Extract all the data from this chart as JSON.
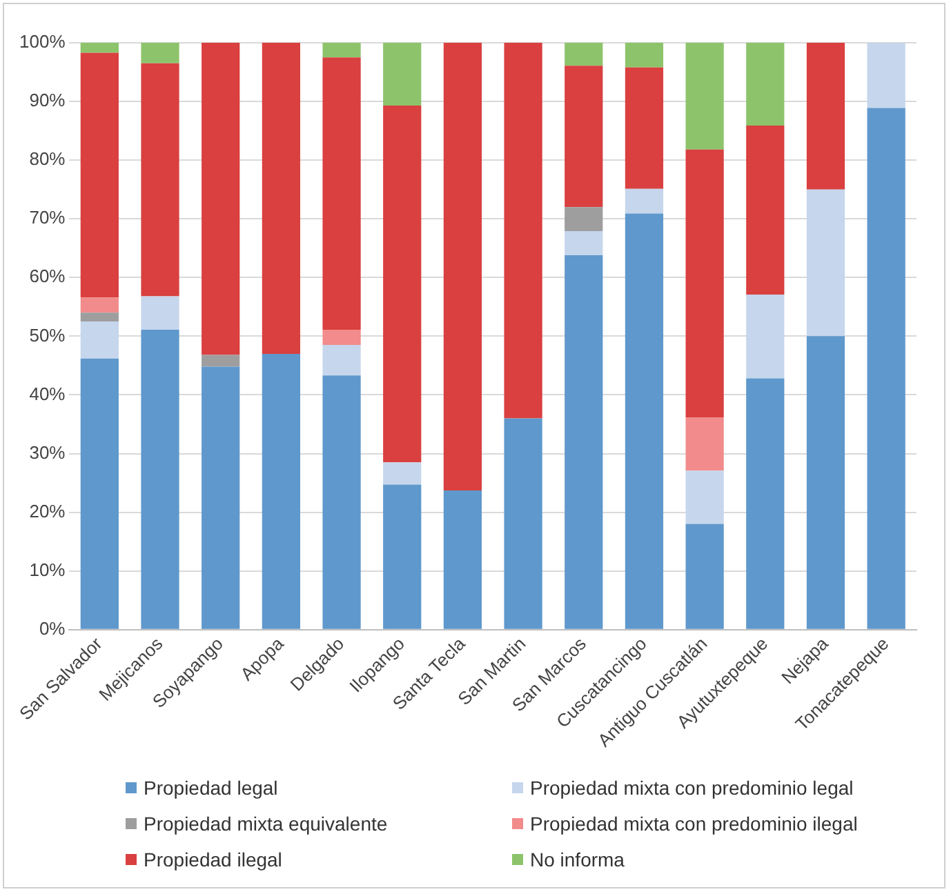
{
  "chart_data": {
    "type": "bar",
    "stacked": true,
    "categories": [
      "San Salvador",
      "Mejicanos",
      "Soyapango",
      "Apopa",
      "Delgado",
      "Ilopango",
      "Santa Tecla",
      "San Martin",
      "San Marcos",
      "Cuscatancingo",
      "Antiguo Cuscatlán",
      "Ayutuxtepeque",
      "Nejapa",
      "Tonacatepeque"
    ],
    "series": [
      {
        "name": "Propiedad legal",
        "color": "#5f98cc",
        "values": [
          46.2,
          51.1,
          44.8,
          47.0,
          43.3,
          24.7,
          23.7,
          36.0,
          63.8,
          70.9,
          18.0,
          42.8,
          50.0,
          88.9
        ]
      },
      {
        "name": "Propiedad mixta con predominio legal",
        "color": "#c6d6ec",
        "values": [
          6.3,
          5.7,
          0,
          0,
          5.2,
          3.8,
          0,
          0,
          4.1,
          4.2,
          9.1,
          14.3,
          25.0,
          11.1
        ]
      },
      {
        "name": "Propiedad mixta equivalente",
        "color": "#9e9e9e",
        "values": [
          1.5,
          0,
          2.0,
          0,
          0,
          0,
          0,
          0,
          4.1,
          0,
          0,
          0,
          0,
          0
        ]
      },
      {
        "name": "Propiedad mixta con predominio ilegal",
        "color": "#f28b8b",
        "values": [
          2.6,
          0,
          0,
          0,
          2.6,
          0,
          0,
          0,
          0,
          0,
          9.0,
          0,
          0,
          0
        ]
      },
      {
        "name": "Propiedad ilegal",
        "color": "#d9403f",
        "values": [
          41.7,
          39.7,
          53.2,
          53.0,
          46.4,
          60.8,
          76.3,
          64.0,
          24.1,
          20.7,
          45.7,
          28.8,
          25.0,
          0
        ]
      },
      {
        "name": "No informa",
        "color": "#8dc46b",
        "values": [
          1.7,
          3.5,
          0,
          0,
          2.5,
          10.7,
          0,
          0,
          3.9,
          4.2,
          18.2,
          14.1,
          0,
          0
        ]
      }
    ],
    "ylim": [
      0,
      100
    ],
    "yticks": [
      {
        "value": 0,
        "label": "0%"
      },
      {
        "value": 10,
        "label": "10%"
      },
      {
        "value": 20,
        "label": "20%"
      },
      {
        "value": 30,
        "label": "30%"
      },
      {
        "value": 40,
        "label": "40%"
      },
      {
        "value": 50,
        "label": "50%"
      },
      {
        "value": 60,
        "label": "60%"
      },
      {
        "value": 70,
        "label": "70%"
      },
      {
        "value": 80,
        "label": "80%"
      },
      {
        "value": 90,
        "label": "90%"
      },
      {
        "value": 100,
        "label": "100%"
      }
    ],
    "grid": "y",
    "legend": "bottom"
  }
}
